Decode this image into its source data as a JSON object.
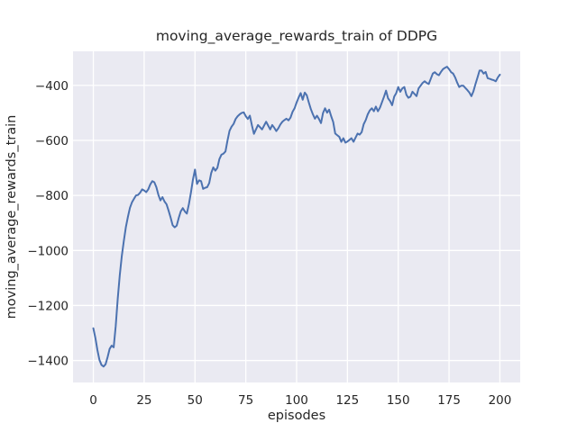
{
  "figure": {
    "title": "moving_average_rewards_train of DDPG",
    "background": "#ffffff"
  },
  "chart_data": {
    "type": "line",
    "title": "moving_average_rewards_train of DDPG",
    "xlabel": "episodes",
    "ylabel": "moving_average_rewards_train",
    "xlim": [
      -10,
      210
    ],
    "ylim": [
      -1480,
      -276
    ],
    "x_tick_values": [
      0,
      25,
      50,
      75,
      100,
      125,
      150,
      175,
      200
    ],
    "x_tick_labels": [
      "0",
      "25",
      "50",
      "75",
      "100",
      "125",
      "150",
      "175",
      "200"
    ],
    "y_tick_values": [
      -400,
      -600,
      -800,
      -1000,
      -1200,
      -1400
    ],
    "y_tick_labels": [
      "−400",
      "−600",
      "−800",
      "−1000",
      "−1200",
      "−1400"
    ],
    "grid": true,
    "grid_color": "#ffffff",
    "plot_background": "#eaeaf2",
    "legend": "none",
    "series": [
      {
        "name": "moving_average_rewards_train",
        "color": "#4c72b0",
        "x_start": 0,
        "x_step": 1,
        "y": [
          -1283,
          -1318,
          -1362,
          -1398,
          -1416,
          -1422,
          -1414,
          -1388,
          -1358,
          -1346,
          -1352,
          -1275,
          -1175,
          -1090,
          -1020,
          -965,
          -915,
          -878,
          -845,
          -825,
          -812,
          -800,
          -798,
          -790,
          -778,
          -782,
          -788,
          -778,
          -760,
          -748,
          -752,
          -770,
          -798,
          -818,
          -806,
          -822,
          -832,
          -855,
          -880,
          -908,
          -916,
          -910,
          -882,
          -858,
          -846,
          -858,
          -866,
          -832,
          -790,
          -742,
          -706,
          -758,
          -745,
          -748,
          -776,
          -772,
          -770,
          -755,
          -718,
          -698,
          -710,
          -700,
          -668,
          -652,
          -648,
          -640,
          -600,
          -565,
          -550,
          -540,
          -522,
          -512,
          -505,
          -500,
          -498,
          -512,
          -522,
          -510,
          -545,
          -576,
          -560,
          -544,
          -552,
          -560,
          -546,
          -532,
          -546,
          -560,
          -544,
          -554,
          -566,
          -556,
          -542,
          -532,
          -526,
          -521,
          -527,
          -517,
          -496,
          -483,
          -462,
          -444,
          -428,
          -452,
          -426,
          -436,
          -462,
          -486,
          -505,
          -521,
          -510,
          -522,
          -537,
          -500,
          -483,
          -499,
          -488,
          -512,
          -533,
          -575,
          -581,
          -587,
          -605,
          -592,
          -608,
          -604,
          -598,
          -592,
          -605,
          -590,
          -575,
          -579,
          -570,
          -541,
          -526,
          -505,
          -491,
          -483,
          -494,
          -477,
          -494,
          -481,
          -461,
          -441,
          -419,
          -447,
          -457,
          -472,
          -441,
          -428,
          -406,
          -423,
          -411,
          -406,
          -434,
          -445,
          -441,
          -423,
          -431,
          -439,
          -411,
          -401,
          -391,
          -385,
          -391,
          -395,
          -376,
          -357,
          -352,
          -359,
          -363,
          -351,
          -341,
          -336,
          -332,
          -341,
          -352,
          -357,
          -371,
          -390,
          -406,
          -401,
          -401,
          -409,
          -417,
          -426,
          -439,
          -421,
          -395,
          -371,
          -346,
          -346,
          -357,
          -351,
          -374,
          -376,
          -379,
          -381,
          -385,
          -371,
          -361
        ]
      }
    ]
  },
  "colors": {
    "line": "#4c72b0",
    "plot_background": "#eaeaf2",
    "grid": "#ffffff",
    "text": "#262626",
    "figure_background": "#ffffff"
  }
}
